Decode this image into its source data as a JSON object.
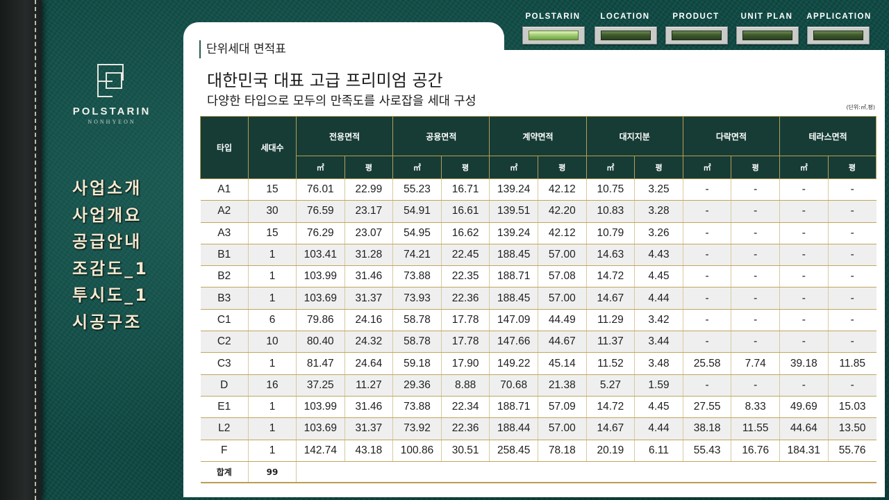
{
  "brand": {
    "name": "POLSTARIN",
    "sub": "NONHYEON"
  },
  "topnav": [
    {
      "label": "POLSTARIN",
      "active": true
    },
    {
      "label": "LOCATION",
      "active": false
    },
    {
      "label": "PRODUCT",
      "active": false
    },
    {
      "label": "UNIT PLAN",
      "active": false
    },
    {
      "label": "APPLICATION",
      "active": false
    }
  ],
  "side_menu": [
    "사업소개",
    "사업개요",
    "공급안내",
    "조감도_1",
    "투시도_1",
    "시공구조"
  ],
  "panel": {
    "section_label": "단위세대 면적표",
    "headline": "대한민국 대표 고급 프리미엄 공간",
    "subline": "다양한 타입으로 모두의 만족도를 사로잡을 세대 구성",
    "unit_note": "(단위:㎡,평)"
  },
  "table": {
    "col_type": "타입",
    "col_count": "세대수",
    "groups": [
      "전용면적",
      "공용면적",
      "계약면적",
      "대지지분",
      "다락면적",
      "테라스면적"
    ],
    "unit_m2": "㎡",
    "unit_pyeong": "평",
    "rows": [
      [
        "A1",
        "15",
        "76.01",
        "22.99",
        "55.23",
        "16.71",
        "139.24",
        "42.12",
        "10.75",
        "3.25",
        "-",
        "-",
        "-",
        "-"
      ],
      [
        "A2",
        "30",
        "76.59",
        "23.17",
        "54.91",
        "16.61",
        "139.51",
        "42.20",
        "10.83",
        "3.28",
        "-",
        "-",
        "-",
        "-"
      ],
      [
        "A3",
        "15",
        "76.29",
        "23.07",
        "54.95",
        "16.62",
        "139.24",
        "42.12",
        "10.79",
        "3.26",
        "-",
        "-",
        "-",
        "-"
      ],
      [
        "B1",
        "1",
        "103.41",
        "31.28",
        "74.21",
        "22.45",
        "188.45",
        "57.00",
        "14.63",
        "4.43",
        "-",
        "-",
        "-",
        "-"
      ],
      [
        "B2",
        "1",
        "103.99",
        "31.46",
        "73.88",
        "22.35",
        "188.71",
        "57.08",
        "14.72",
        "4.45",
        "-",
        "-",
        "-",
        "-"
      ],
      [
        "B3",
        "1",
        "103.69",
        "31.37",
        "73.93",
        "22.36",
        "188.45",
        "57.00",
        "14.67",
        "4.44",
        "-",
        "-",
        "-",
        "-"
      ],
      [
        "C1",
        "6",
        "79.86",
        "24.16",
        "58.78",
        "17.78",
        "147.09",
        "44.49",
        "11.29",
        "3.42",
        "-",
        "-",
        "-",
        "-"
      ],
      [
        "C2",
        "10",
        "80.40",
        "24.32",
        "58.78",
        "17.78",
        "147.66",
        "44.67",
        "11.37",
        "3.44",
        "-",
        "-",
        "-",
        "-"
      ],
      [
        "C3",
        "1",
        "81.47",
        "24.64",
        "59.18",
        "17.90",
        "149.22",
        "45.14",
        "11.52",
        "3.48",
        "25.58",
        "7.74",
        "39.18",
        "11.85"
      ],
      [
        "D",
        "16",
        "37.25",
        "11.27",
        "29.36",
        "8.88",
        "70.68",
        "21.38",
        "5.27",
        "1.59",
        "-",
        "-",
        "-",
        "-"
      ],
      [
        "E1",
        "1",
        "103.99",
        "31.46",
        "73.88",
        "22.34",
        "188.71",
        "57.09",
        "14.72",
        "4.45",
        "27.55",
        "8.33",
        "49.69",
        "15.03"
      ],
      [
        "L2",
        "1",
        "103.69",
        "31.37",
        "73.92",
        "22.36",
        "188.44",
        "57.00",
        "14.67",
        "4.44",
        "38.18",
        "11.55",
        "44.64",
        "13.50"
      ],
      [
        "F",
        "1",
        "142.74",
        "43.18",
        "100.86",
        "30.51",
        "258.45",
        "78.18",
        "20.19",
        "6.11",
        "55.43",
        "16.76",
        "184.31",
        "55.76"
      ]
    ],
    "total_label": "합계",
    "total_count": "99"
  }
}
